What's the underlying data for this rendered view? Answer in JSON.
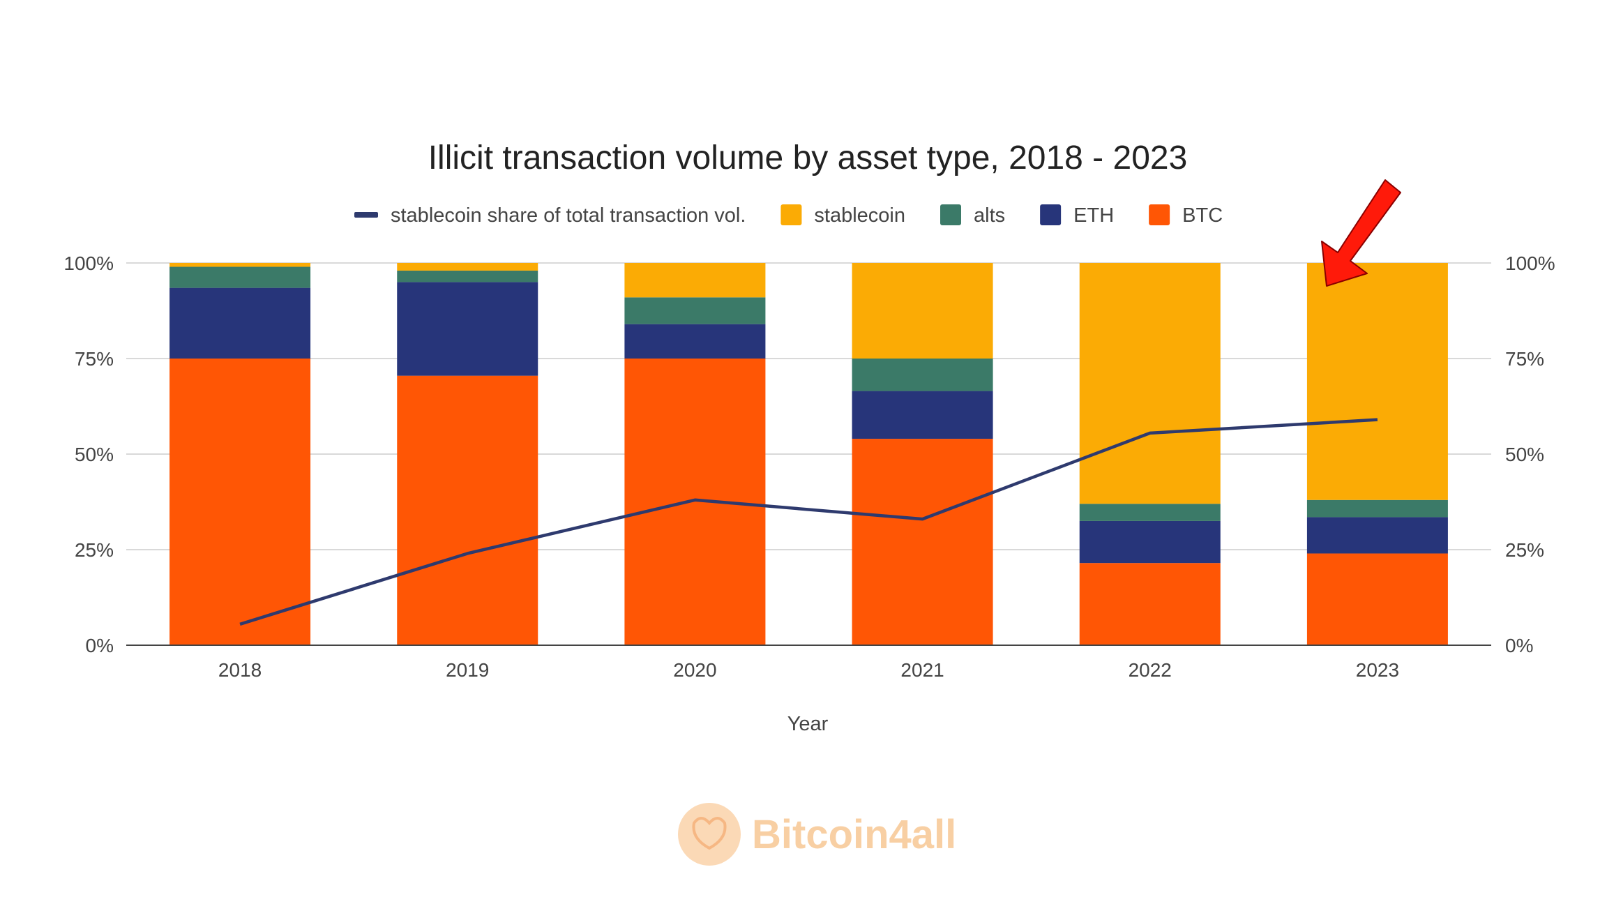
{
  "chart_data": {
    "type": "bar",
    "stacked": true,
    "title": "Illicit transaction volume by asset type, 2018 - 2023",
    "xlabel": "Year",
    "ylabel": "",
    "categories": [
      "2018",
      "2019",
      "2020",
      "2021",
      "2022",
      "2023"
    ],
    "ylim": [
      0,
      100
    ],
    "y_ticks": [
      "0%",
      "25%",
      "50%",
      "75%",
      "100%"
    ],
    "y_ticks_right": [
      "0%",
      "25%",
      "50%",
      "75%",
      "100%"
    ],
    "grid": true,
    "legend_position": "top",
    "legend": [
      {
        "label": "stablecoin share of total transaction vol.",
        "kind": "line",
        "color": "#2e3a6e"
      },
      {
        "label": "stablecoin",
        "kind": "box",
        "color": "#fbab05"
      },
      {
        "label": "alts",
        "kind": "box",
        "color": "#3b7a68"
      },
      {
        "label": "ETH",
        "kind": "box",
        "color": "#27357a"
      },
      {
        "label": "BTC",
        "kind": "box",
        "color": "#ff5605"
      }
    ],
    "series": [
      {
        "name": "BTC",
        "color": "#ff5605",
        "values": [
          75,
          70.5,
          75,
          54,
          21.5,
          24
        ]
      },
      {
        "name": "ETH",
        "color": "#27357a",
        "values": [
          18.5,
          24.5,
          9,
          12.5,
          11,
          9.5
        ]
      },
      {
        "name": "alts",
        "color": "#3b7a68",
        "values": [
          5.5,
          3,
          7,
          8.5,
          4.5,
          4.5
        ]
      },
      {
        "name": "stablecoin",
        "color": "#fbab05",
        "values": [
          1,
          2,
          9,
          25,
          63,
          62
        ]
      }
    ],
    "line_series": {
      "name": "stablecoin share of total transaction vol.",
      "color": "#2e3a6e",
      "values": [
        5.5,
        24,
        38,
        33,
        55.5,
        59
      ]
    },
    "annotation": {
      "kind": "arrow",
      "color": "#ff0000",
      "target": "2023"
    }
  },
  "watermark": {
    "text": "Bitcoin4all",
    "color": "#f8cfa3"
  }
}
